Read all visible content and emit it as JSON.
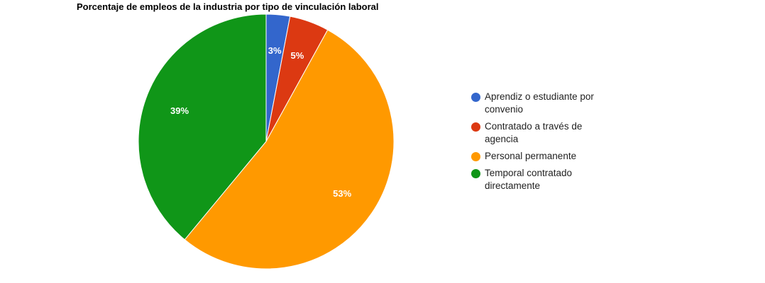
{
  "chart_data": {
    "type": "pie",
    "title": "Porcentaje de empleos de la industria por tipo de vinculación laboral",
    "legend_position": "right",
    "slices": [
      {
        "label": "Aprendiz o estudiante por convenio",
        "value": 3,
        "display": "3%",
        "color": "#3366cc"
      },
      {
        "label": "Contratado a través de agencia",
        "value": 5,
        "display": "5%",
        "color": "#dc3912"
      },
      {
        "label": "Personal permanente",
        "value": 53,
        "display": "53%",
        "color": "#ff9900"
      },
      {
        "label": "Temporal contratado directamente",
        "value": 39,
        "display": "39%",
        "color": "#109618"
      }
    ]
  }
}
